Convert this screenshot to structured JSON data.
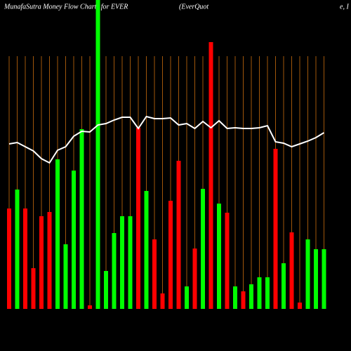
{
  "chart_data": {
    "type": "bar",
    "title": "MunafaSutra  Money Flow  Charts for EVER",
    "annotations": [
      "(EverQuot",
      "e, I"
    ],
    "categories": [
      null,
      null,
      null,
      null,
      null,
      null,
      null,
      null,
      null,
      null,
      null,
      null,
      null,
      null,
      null,
      null,
      null,
      null,
      null,
      null,
      null,
      null,
      null,
      null,
      null,
      null,
      null,
      null,
      null,
      null,
      null,
      null,
      null,
      null,
      null,
      null,
      null,
      null,
      null,
      null
    ],
    "values": [
      143,
      170,
      143,
      58,
      132,
      138,
      213,
      92,
      197,
      256,
      5,
      445,
      54,
      108,
      132,
      132,
      258,
      168,
      99,
      22,
      154,
      211,
      32,
      86,
      171,
      380,
      150,
      137,
      32,
      25,
      35,
      45,
      45,
      228,
      65,
      109,
      9,
      99,
      85,
      85
    ],
    "colors": [
      "#ff0000",
      "#00ff00",
      "#ff0000",
      "#ff0000",
      "#ff0000",
      "#ff0000",
      "#00ff00",
      "#00ff00",
      "#00ff00",
      "#00ff00",
      "#ff0000",
      "#00ff00",
      "#00ff00",
      "#00ff00",
      "#00ff00",
      "#00ff00",
      "#ff0000",
      "#00ff00",
      "#ff0000",
      "#ff0000",
      "#ff0000",
      "#ff0000",
      "#00ff00",
      "#ff0000",
      "#00ff00",
      "#ff0000",
      "#00ff00",
      "#ff0000",
      "#00ff00",
      "#ff0000",
      "#00ff00",
      "#00ff00",
      "#00ff00",
      "#ff0000",
      "#00ff00",
      "#ff0000",
      "#ff0000",
      "#00ff00",
      "#00ff00",
      "#00ff00"
    ],
    "line": {
      "color": "#ffffff",
      "values": [
        235,
        237,
        231,
        225,
        214,
        208,
        226,
        231,
        246,
        253,
        252,
        262,
        264,
        269,
        273,
        273,
        257,
        274,
        271,
        271,
        272,
        262,
        264,
        257,
        267,
        258,
        268,
        257,
        258,
        257,
        257,
        258,
        261,
        238,
        236,
        231,
        235,
        239,
        244,
        251
      ]
    },
    "ylim": [
      0,
      445
    ],
    "grid": true,
    "grid_color": "#a0560a"
  }
}
